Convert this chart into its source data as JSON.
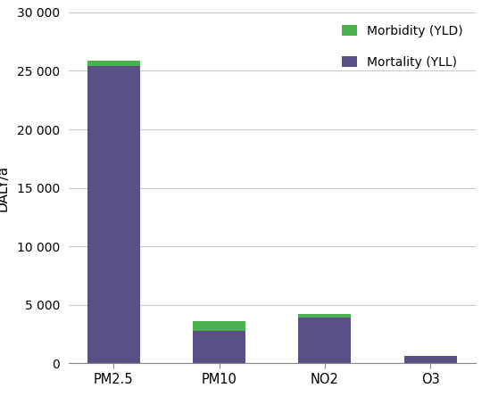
{
  "categories": [
    "PM2.5",
    "PM10",
    "NO2",
    "O3"
  ],
  "mortality_yll": [
    25400,
    2750,
    3900,
    620
  ],
  "morbidity_yld": [
    450,
    900,
    350,
    0
  ],
  "mortality_color": "#5b5086",
  "morbidity_color": "#4caf50",
  "ylabel": "DALY/a",
  "ylim": [
    0,
    30000
  ],
  "yticks": [
    0,
    5000,
    10000,
    15000,
    20000,
    25000,
    30000
  ],
  "ytick_labels": [
    "0",
    "5 000",
    "10 000",
    "15 000",
    "20 000",
    "25 000",
    "30 000"
  ],
  "legend_morbidity": "Morbidity (YLD)",
  "legend_mortality": "Mortality (YLL)",
  "background_color": "#ffffff",
  "grid_color": "#c8c8c8",
  "bar_width": 0.5
}
